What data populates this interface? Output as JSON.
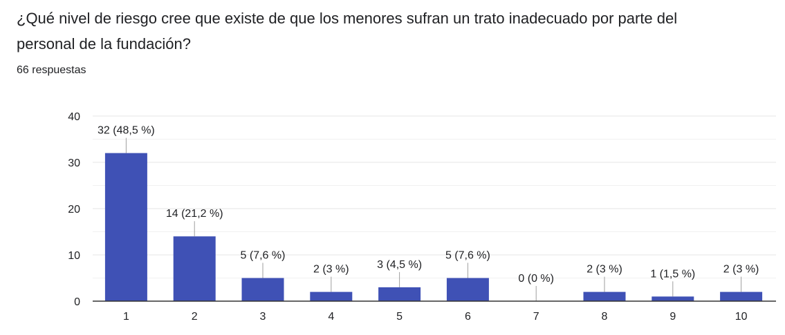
{
  "question": {
    "title": "¿Qué nivel de riesgo cree que existe de que los menores sufran un trato inadecuado por parte del personal de la fundación?",
    "response_count": "66 respuestas"
  },
  "colors": {
    "bar": "#3f51b5",
    "grid": "#e6e6e6",
    "axis": "#333333",
    "text": "#202124"
  },
  "chart_data": {
    "type": "bar",
    "categories": [
      "1",
      "2",
      "3",
      "4",
      "5",
      "6",
      "7",
      "8",
      "9",
      "10"
    ],
    "values": [
      32,
      14,
      5,
      2,
      3,
      5,
      0,
      2,
      1,
      2
    ],
    "data_labels": [
      "32 (48,5 %)",
      "14 (21,2 %)",
      "5 (7,6 %)",
      "2 (3 %)",
      "3 (4,5 %)",
      "5 (7,6 %)",
      "0 (0 %)",
      "2 (3 %)",
      "1 (1,5 %)",
      "2 (3 %)"
    ],
    "y_ticks": [
      "0",
      "10",
      "20",
      "30",
      "40"
    ],
    "y_tick_values": [
      0,
      10,
      20,
      30,
      40
    ],
    "ylim": [
      0,
      40
    ],
    "grid": true,
    "legend": "none"
  }
}
